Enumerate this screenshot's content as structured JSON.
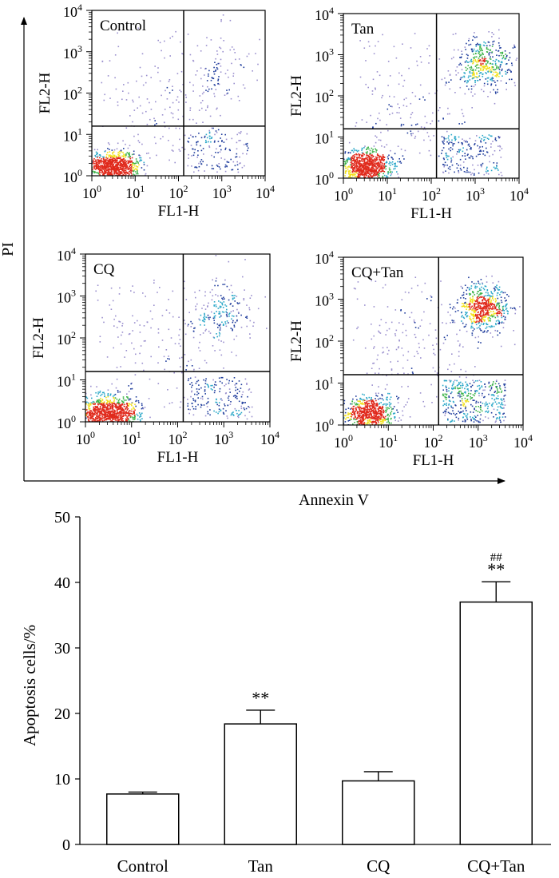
{
  "flow_section": {
    "y_axis_label": "PI",
    "x_axis_label": "Annexin V",
    "panels": [
      {
        "title": "Control",
        "xlabel": "FL1-H",
        "ylabel": "FL2-H"
      },
      {
        "title": "Tan",
        "xlabel": "FL1-H",
        "ylabel": "FL2-H"
      },
      {
        "title": "CQ",
        "xlabel": "FL1-H",
        "ylabel": "FL2-H"
      },
      {
        "title": "CQ+Tan",
        "xlabel": "FL1-H",
        "ylabel": "FL2-H"
      }
    ],
    "log_ticks": [
      {
        "base": "10",
        "exp": "0"
      },
      {
        "base": "10",
        "exp": "1"
      },
      {
        "base": "10",
        "exp": "2"
      },
      {
        "base": "10",
        "exp": "3"
      },
      {
        "base": "10",
        "exp": "4"
      }
    ],
    "palette": {
      "sparse": "#9a8fce",
      "mid": "#1f3c9c",
      "cyan": "#2aa7c8",
      "green": "#3cb34a",
      "yellow": "#f2e01a",
      "red": "#e02a1c"
    }
  },
  "chart_data": {
    "type": "bar",
    "title": "",
    "xlabel": "",
    "ylabel": "Apoptosis cells/%",
    "categories": [
      "Control",
      "Tan",
      "CQ",
      "CQ+Tan"
    ],
    "values": [
      7.7,
      18.4,
      9.7,
      37.0
    ],
    "errors": [
      0.3,
      2.1,
      1.4,
      3.1
    ],
    "annotations": [
      {
        "category": "Tan",
        "lines": [
          "**"
        ]
      },
      {
        "category": "CQ+Tan",
        "lines": [
          "##",
          "**"
        ]
      }
    ],
    "ylim": [
      0,
      50
    ],
    "yticks": [
      0,
      10,
      20,
      30,
      40,
      50
    ],
    "grid": false,
    "bar_fill": "#ffffff",
    "bar_stroke": "#000000"
  }
}
